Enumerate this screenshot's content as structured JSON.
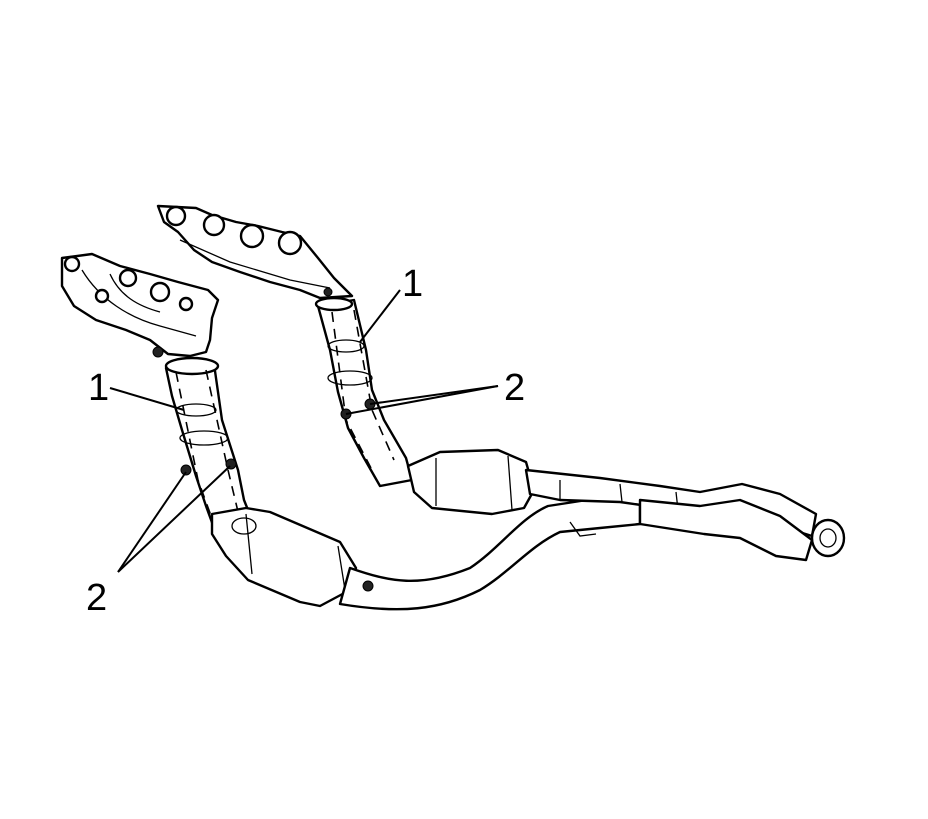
{
  "callouts": {
    "gasket_left": "1",
    "gasket_right": "1",
    "nuts_left": "2",
    "nuts_right": "2"
  }
}
